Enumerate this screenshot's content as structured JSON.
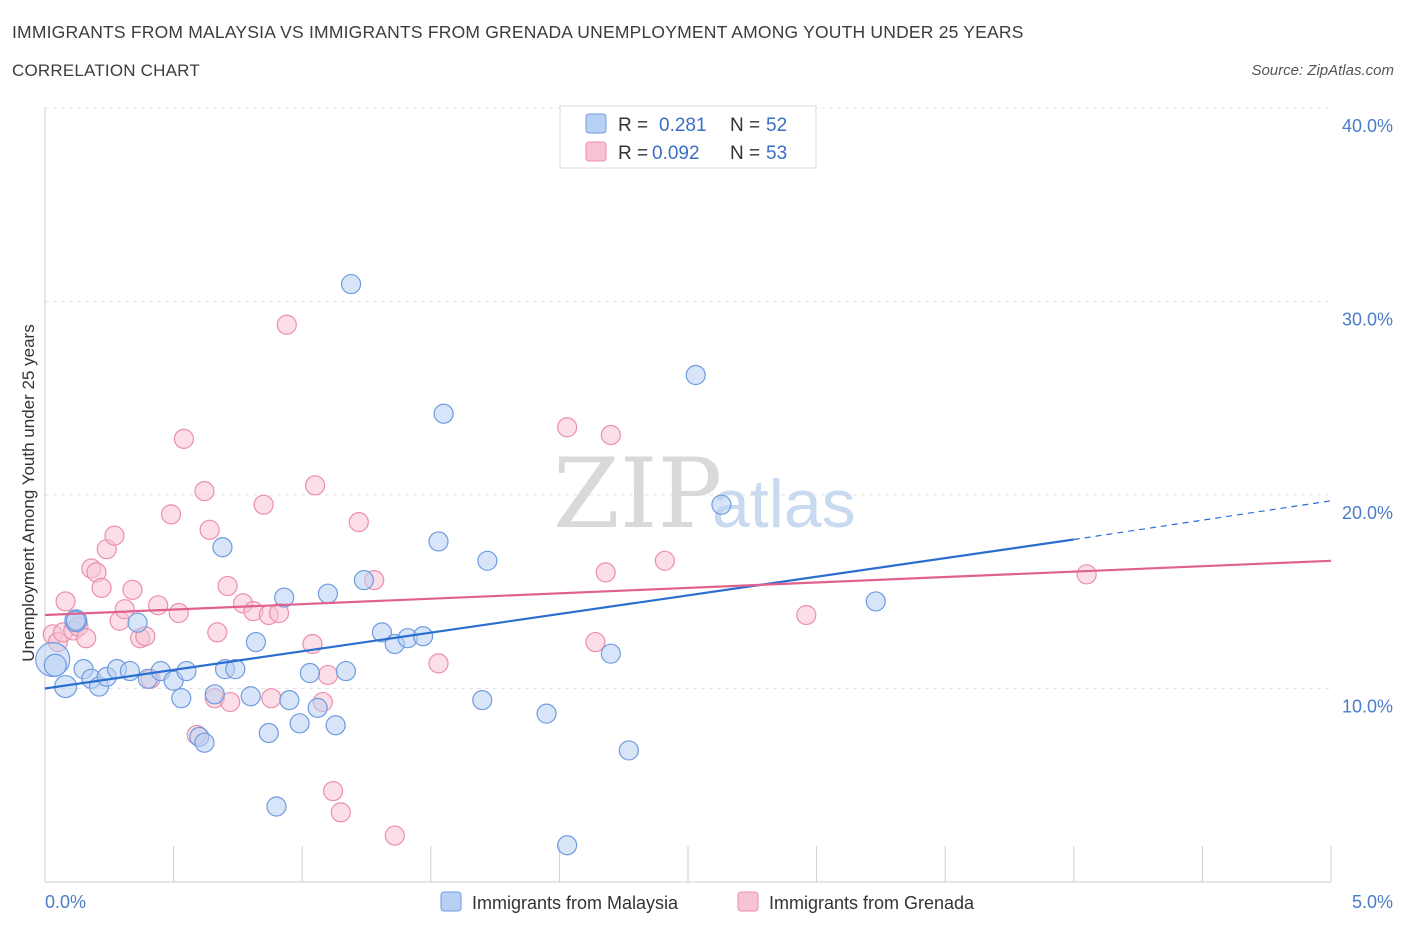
{
  "header": {
    "title": "IMMIGRANTS FROM MALAYSIA VS IMMIGRANTS FROM GRENADA UNEMPLOYMENT AMONG YOUTH UNDER 25 YEARS",
    "subtitle": "CORRELATION CHART",
    "source": "Source: ZipAtlas.com"
  },
  "watermark": {
    "zip": "ZIP",
    "atlas": "atlas"
  },
  "stats": {
    "malaysia": {
      "r_label": "R =",
      "r_value": "0.281",
      "n_label": "N =",
      "n_value": "52"
    },
    "grenada": {
      "r_label": "R =",
      "r_value": "0.092",
      "n_label": "N =",
      "n_value": "53"
    }
  },
  "colors": {
    "malaysia_fill": "#b8d0f3",
    "malaysia_stroke": "#6f9be0",
    "malaysia_line": "#2a6fd0",
    "grenada_fill": "#f8c3d3",
    "grenada_stroke": "#ec8fac",
    "grenada_line": "#e0628c"
  },
  "chart_data": {
    "type": "scatter",
    "title": "IMMIGRANTS FROM MALAYSIA VS IMMIGRANTS FROM GRENADA UNEMPLOYMENT AMONG YOUTH UNDER 25 YEARS",
    "xlabel": "",
    "ylabel": "Unemployment Among Youth under 25 years",
    "xlim": [
      0,
      5
    ],
    "ylim": [
      0,
      40
    ],
    "x_tick_labels": [
      "0.0%",
      "5.0%"
    ],
    "y_ticks": [
      10,
      20,
      30,
      40
    ],
    "y_tick_labels": [
      "10.0%",
      "20.0%",
      "30.0%",
      "40.0%"
    ],
    "grid": true,
    "legend": "bottom-center",
    "series": [
      {
        "name": "Immigrants from Malaysia",
        "trend": {
          "x0": 0,
          "y0": 10.0,
          "x1": 4.0,
          "y1": 17.7,
          "dash_to_x": 5.0,
          "dash_to_y": 19.7
        },
        "points": [
          [
            0.03,
            11.5
          ],
          [
            0.04,
            11.2
          ],
          [
            0.08,
            10.1
          ],
          [
            0.12,
            13.5
          ],
          [
            0.15,
            11.0
          ],
          [
            0.18,
            10.5
          ],
          [
            0.21,
            10.1
          ],
          [
            0.24,
            10.6
          ],
          [
            0.28,
            11.0
          ],
          [
            0.33,
            10.9
          ],
          [
            0.36,
            13.4
          ],
          [
            0.4,
            10.5
          ],
          [
            0.45,
            10.9
          ],
          [
            0.5,
            10.4
          ],
          [
            0.53,
            9.5
          ],
          [
            0.55,
            10.9
          ],
          [
            0.6,
            7.5
          ],
          [
            0.62,
            7.2
          ],
          [
            0.66,
            9.7
          ],
          [
            0.7,
            11.0
          ],
          [
            0.74,
            11.0
          ],
          [
            0.69,
            17.3
          ],
          [
            0.8,
            9.6
          ],
          [
            0.82,
            12.4
          ],
          [
            0.87,
            7.7
          ],
          [
            0.9,
            3.9
          ],
          [
            0.93,
            14.7
          ],
          [
            0.95,
            9.4
          ],
          [
            0.99,
            8.2
          ],
          [
            1.03,
            10.8
          ],
          [
            1.06,
            9.0
          ],
          [
            1.1,
            14.9
          ],
          [
            1.13,
            8.1
          ],
          [
            1.17,
            10.9
          ],
          [
            1.19,
            30.9
          ],
          [
            1.24,
            15.6
          ],
          [
            1.31,
            12.9
          ],
          [
            1.36,
            12.3
          ],
          [
            1.41,
            12.6
          ],
          [
            1.47,
            12.7
          ],
          [
            1.53,
            17.6
          ],
          [
            1.55,
            24.2
          ],
          [
            1.7,
            9.4
          ],
          [
            1.72,
            16.6
          ],
          [
            1.95,
            8.7
          ],
          [
            2.03,
            1.9
          ],
          [
            2.2,
            11.8
          ],
          [
            2.27,
            6.8
          ],
          [
            2.53,
            26.2
          ],
          [
            2.63,
            19.5
          ],
          [
            3.23,
            14.5
          ],
          [
            0.12,
            13.5
          ]
        ],
        "sizes_note": "one large point at far left"
      },
      {
        "name": "Immigrants from Grenada",
        "trend": {
          "x0": 0,
          "y0": 13.8,
          "x1": 5.0,
          "y1": 16.6
        },
        "points": [
          [
            0.03,
            12.8
          ],
          [
            0.05,
            12.4
          ],
          [
            0.07,
            12.9
          ],
          [
            0.08,
            14.5
          ],
          [
            0.11,
            13.0
          ],
          [
            0.13,
            13.2
          ],
          [
            0.16,
            12.6
          ],
          [
            0.18,
            16.2
          ],
          [
            0.2,
            16.0
          ],
          [
            0.22,
            15.2
          ],
          [
            0.24,
            17.2
          ],
          [
            0.27,
            17.9
          ],
          [
            0.29,
            13.5
          ],
          [
            0.31,
            14.1
          ],
          [
            0.34,
            15.1
          ],
          [
            0.37,
            12.6
          ],
          [
            0.39,
            12.7
          ],
          [
            0.41,
            10.5
          ],
          [
            0.44,
            14.3
          ],
          [
            0.49,
            19.0
          ],
          [
            0.52,
            13.9
          ],
          [
            0.54,
            22.9
          ],
          [
            0.59,
            7.6
          ],
          [
            0.62,
            20.2
          ],
          [
            0.64,
            18.2
          ],
          [
            0.66,
            9.5
          ],
          [
            0.67,
            12.9
          ],
          [
            0.71,
            15.3
          ],
          [
            0.72,
            9.3
          ],
          [
            0.77,
            14.4
          ],
          [
            0.81,
            14.0
          ],
          [
            0.85,
            19.5
          ],
          [
            0.87,
            13.8
          ],
          [
            0.88,
            9.5
          ],
          [
            0.91,
            13.9
          ],
          [
            0.94,
            28.8
          ],
          [
            1.04,
            12.3
          ],
          [
            1.05,
            20.5
          ],
          [
            1.08,
            9.3
          ],
          [
            1.1,
            10.7
          ],
          [
            1.12,
            4.7
          ],
          [
            1.15,
            3.6
          ],
          [
            1.22,
            18.6
          ],
          [
            1.28,
            15.6
          ],
          [
            1.36,
            2.4
          ],
          [
            1.53,
            11.3
          ],
          [
            2.03,
            23.5
          ],
          [
            2.14,
            12.4
          ],
          [
            2.18,
            16.0
          ],
          [
            2.2,
            23.1
          ],
          [
            2.41,
            16.6
          ],
          [
            2.96,
            13.8
          ],
          [
            4.05,
            15.9
          ]
        ]
      }
    ]
  },
  "legend": {
    "malaysia_label": "Immigrants from Malaysia",
    "grenada_label": "Immigrants from Grenada"
  }
}
